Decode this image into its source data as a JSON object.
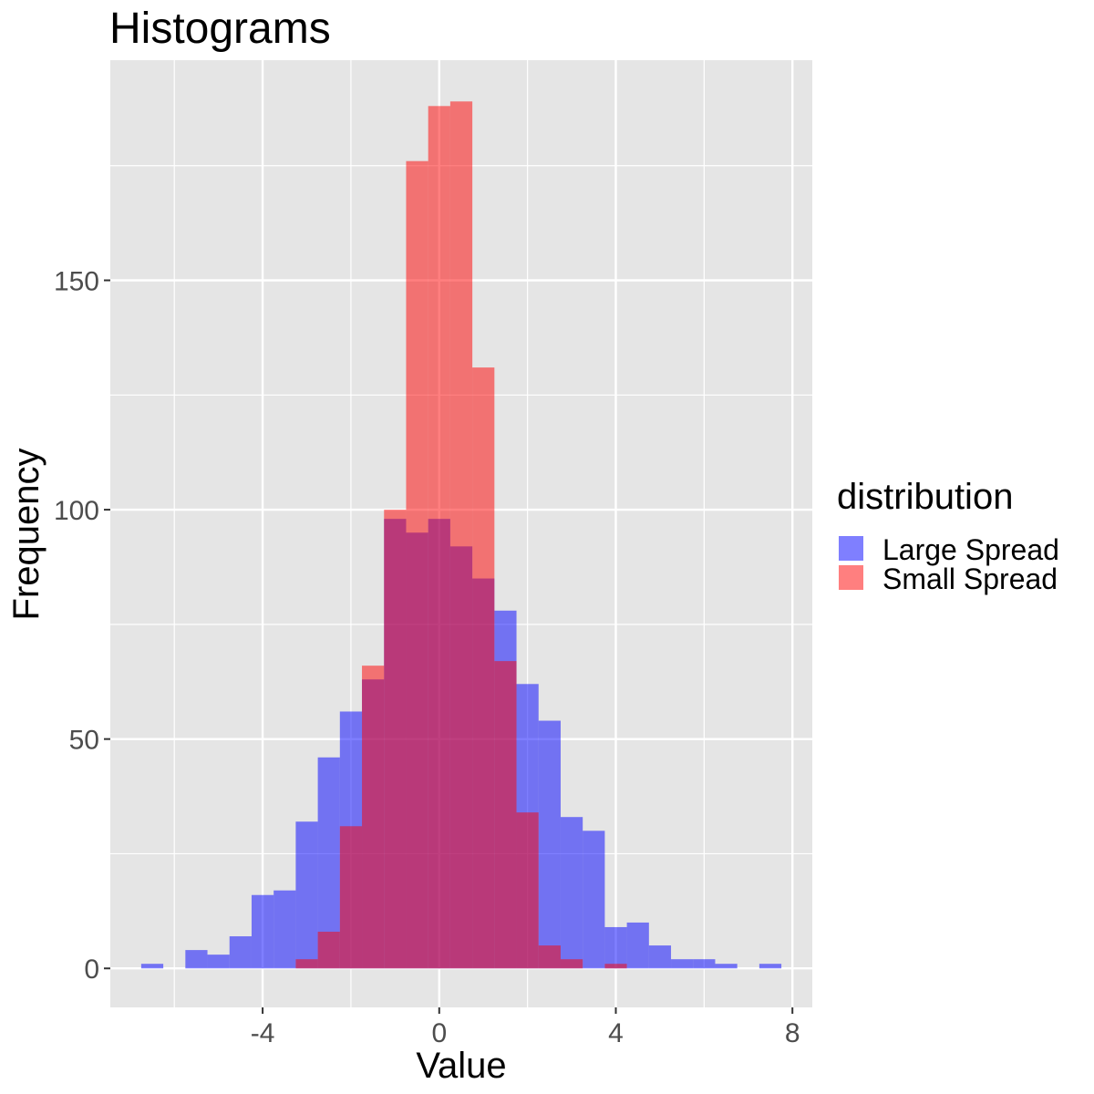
{
  "chart_data": {
    "type": "histogram",
    "title": "Histograms",
    "xlabel": "Value",
    "ylabel": "Frequency",
    "xlim": [
      -7.45,
      8.45
    ],
    "ylim": [
      -8.5,
      198
    ],
    "x_ticks": [
      -4,
      0,
      4,
      8
    ],
    "x_tick_labels": [
      "-4",
      "0",
      "4",
      "8"
    ],
    "x_minor_ticks": [
      -6,
      -2,
      2,
      6
    ],
    "y_ticks": [
      0,
      50,
      100,
      150
    ],
    "y_tick_labels": [
      "0",
      "50",
      "100",
      "150"
    ],
    "y_minor_ticks": [
      25,
      75,
      125,
      175
    ],
    "grid": true,
    "legend": {
      "title": "distribution",
      "position": "right",
      "entries": [
        "Large Spread",
        "Small Spread"
      ]
    },
    "colors": {
      "panel_background": "#e5e5e5",
      "gridline": "#ffffff",
      "large_spread_fill": "rgba(0, 0, 255, 0.5)",
      "small_spread_fill": "rgba(255, 0, 0, 0.5)",
      "large_spread_legend": "#7f7fff",
      "small_spread_legend": "#ff7f7f"
    },
    "bin_width": 0.5,
    "series": [
      {
        "name": "Large Spread",
        "bins": [
          {
            "x0": -6.75,
            "x1": -6.25,
            "count": 1
          },
          {
            "x0": -5.75,
            "x1": -5.25,
            "count": 4
          },
          {
            "x0": -5.25,
            "x1": -4.75,
            "count": 3
          },
          {
            "x0": -4.75,
            "x1": -4.25,
            "count": 7
          },
          {
            "x0": -4.25,
            "x1": -3.75,
            "count": 16
          },
          {
            "x0": -3.75,
            "x1": -3.25,
            "count": 17
          },
          {
            "x0": -3.25,
            "x1": -2.75,
            "count": 32
          },
          {
            "x0": -2.75,
            "x1": -2.25,
            "count": 46
          },
          {
            "x0": -2.25,
            "x1": -1.75,
            "count": 56
          },
          {
            "x0": -1.75,
            "x1": -1.25,
            "count": 63
          },
          {
            "x0": -1.25,
            "x1": -0.75,
            "count": 98
          },
          {
            "x0": -0.75,
            "x1": -0.25,
            "count": 95
          },
          {
            "x0": -0.25,
            "x1": 0.25,
            "count": 98
          },
          {
            "x0": 0.25,
            "x1": 0.75,
            "count": 92
          },
          {
            "x0": 0.75,
            "x1": 1.25,
            "count": 85
          },
          {
            "x0": 1.25,
            "x1": 1.75,
            "count": 78
          },
          {
            "x0": 1.75,
            "x1": 2.25,
            "count": 62
          },
          {
            "x0": 2.25,
            "x1": 2.75,
            "count": 54
          },
          {
            "x0": 2.75,
            "x1": 3.25,
            "count": 33
          },
          {
            "x0": 3.25,
            "x1": 3.75,
            "count": 30
          },
          {
            "x0": 3.75,
            "x1": 4.25,
            "count": 9
          },
          {
            "x0": 4.25,
            "x1": 4.75,
            "count": 10
          },
          {
            "x0": 4.75,
            "x1": 5.25,
            "count": 5
          },
          {
            "x0": 5.25,
            "x1": 5.75,
            "count": 2
          },
          {
            "x0": 5.75,
            "x1": 6.25,
            "count": 2
          },
          {
            "x0": 6.25,
            "x1": 6.75,
            "count": 1
          },
          {
            "x0": 7.25,
            "x1": 7.75,
            "count": 1
          }
        ]
      },
      {
        "name": "Small Spread",
        "bins": [
          {
            "x0": -3.25,
            "x1": -2.75,
            "count": 2
          },
          {
            "x0": -2.75,
            "x1": -2.25,
            "count": 8
          },
          {
            "x0": -2.25,
            "x1": -1.75,
            "count": 31
          },
          {
            "x0": -1.75,
            "x1": -1.25,
            "count": 66
          },
          {
            "x0": -1.25,
            "x1": -0.75,
            "count": 100
          },
          {
            "x0": -0.75,
            "x1": -0.25,
            "count": 176
          },
          {
            "x0": -0.25,
            "x1": 0.25,
            "count": 188
          },
          {
            "x0": 0.25,
            "x1": 0.75,
            "count": 189
          },
          {
            "x0": 0.75,
            "x1": 1.25,
            "count": 131
          },
          {
            "x0": 1.25,
            "x1": 1.75,
            "count": 67
          },
          {
            "x0": 1.75,
            "x1": 2.25,
            "count": 34
          },
          {
            "x0": 2.25,
            "x1": 2.75,
            "count": 5
          },
          {
            "x0": 2.75,
            "x1": 3.25,
            "count": 2
          },
          {
            "x0": 3.75,
            "x1": 4.25,
            "count": 1
          }
        ]
      }
    ]
  }
}
